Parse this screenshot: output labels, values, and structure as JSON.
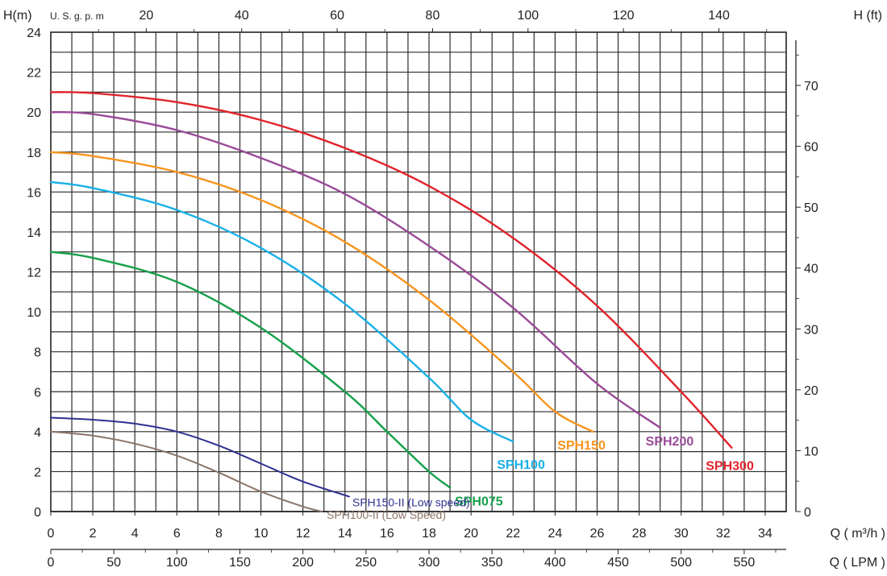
{
  "chart_data": {
    "type": "line",
    "title": "",
    "xlabel": "Q ( m³/h )",
    "ylabel": "H(m)",
    "xlim": [
      0,
      35
    ],
    "ylim": [
      0,
      24
    ],
    "x_ticks": [
      0,
      2,
      4,
      6,
      8,
      10,
      12,
      14,
      16,
      18,
      20,
      22,
      24,
      26,
      28,
      30,
      32,
      34
    ],
    "y_ticks": [
      0,
      2,
      4,
      6,
      8,
      10,
      12,
      14,
      16,
      18,
      20,
      22,
      24
    ],
    "grid": true,
    "secondary_axes": {
      "top": {
        "label": "U. S. g. p. m",
        "ticks": [
          20,
          40,
          60,
          80,
          100,
          120,
          140
        ]
      },
      "right": {
        "label": "H (ft)",
        "ticks": [
          0,
          10,
          20,
          30,
          40,
          50,
          60,
          70
        ]
      },
      "bottom": {
        "label": "Q ( LPM )",
        "ticks": [
          0,
          50,
          100,
          150,
          200,
          250,
          300,
          350,
          400,
          450,
          500,
          550
        ]
      }
    },
    "series": [
      {
        "name": "SPH300",
        "color": "#e1232b",
        "x": [
          0,
          2,
          6,
          10,
          14,
          18,
          22,
          26,
          30,
          32.4
        ],
        "y": [
          21.0,
          20.95,
          20.5,
          19.6,
          18.2,
          16.3,
          13.7,
          10.3,
          6.0,
          3.2
        ]
      },
      {
        "name": "SPH200",
        "color": "#9a4a98",
        "x": [
          0,
          2,
          6,
          10,
          14,
          18,
          22,
          26,
          29
        ],
        "y": [
          20.0,
          19.9,
          19.1,
          17.7,
          15.9,
          13.3,
          10.2,
          6.4,
          4.2
        ]
      },
      {
        "name": "SPH150",
        "color": "#f7941d",
        "x": [
          0,
          2,
          6,
          10,
          14,
          18,
          22,
          24,
          25.8
        ],
        "y": [
          18.0,
          17.8,
          17.0,
          15.6,
          13.5,
          10.6,
          7.0,
          5.0,
          4.0
        ]
      },
      {
        "name": "SPH100",
        "color": "#1ab0e8",
        "x": [
          0,
          2,
          6,
          10,
          14,
          18,
          20,
          22
        ],
        "y": [
          16.5,
          16.2,
          15.1,
          13.2,
          10.4,
          6.7,
          4.6,
          3.5
        ]
      },
      {
        "name": "SPH075",
        "color": "#16a04a",
        "x": [
          0,
          2,
          6,
          10,
          14,
          16,
          18,
          19.0
        ],
        "y": [
          13.0,
          12.7,
          11.5,
          9.2,
          6.0,
          4.0,
          2.0,
          1.2
        ]
      },
      {
        "name": "SPH150-II (Low speed)",
        "color": "#2e3192",
        "x": [
          0,
          2,
          4,
          6,
          8,
          10,
          12,
          14.2
        ],
        "y": [
          4.7,
          4.6,
          4.4,
          4.0,
          3.3,
          2.4,
          1.5,
          0.75
        ]
      },
      {
        "name": "SPH100-II (Low Speed)",
        "color": "#8b7466",
        "x": [
          0,
          2,
          4,
          6,
          8,
          10,
          12,
          12.9
        ],
        "y": [
          4.0,
          3.8,
          3.4,
          2.8,
          1.95,
          1.0,
          0.25,
          0.0
        ]
      }
    ]
  }
}
